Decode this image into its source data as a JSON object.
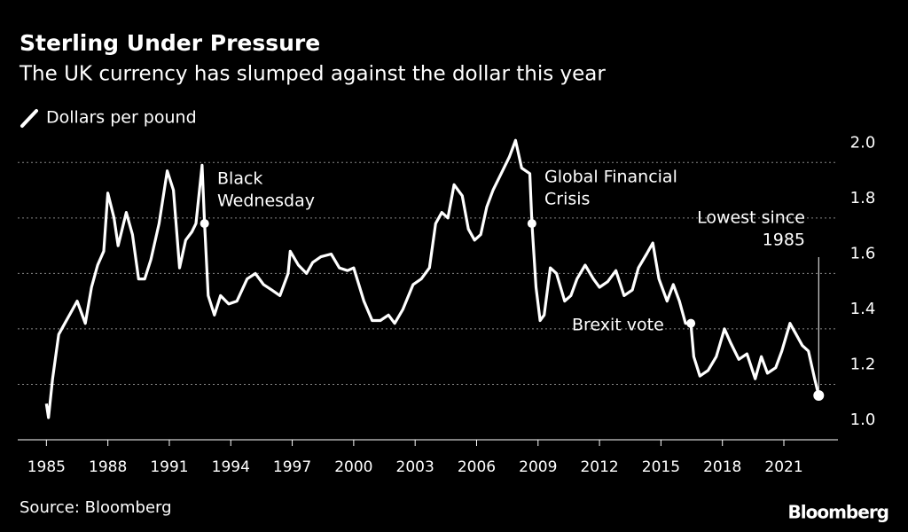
{
  "chart_data": {
    "type": "line",
    "title": "Sterling Under Pressure",
    "subtitle": "The UK currency has slumped against the dollar this year",
    "source": "Source: Bloomberg",
    "brand": "Bloomberg",
    "x": [
      1985.0,
      1985.1,
      1985.3,
      1985.6,
      1985.9,
      1986.2,
      1986.5,
      1986.9,
      1987.2,
      1987.5,
      1987.8,
      1988.0,
      1988.3,
      1988.5,
      1988.9,
      1989.2,
      1989.5,
      1989.8,
      1990.1,
      1990.5,
      1990.9,
      1991.2,
      1991.5,
      1991.8,
      1992.1,
      1992.3,
      1992.6,
      1992.72,
      1992.9,
      1993.2,
      1993.5,
      1993.9,
      1994.3,
      1994.8,
      1995.2,
      1995.6,
      1996.0,
      1996.4,
      1996.8,
      1996.9,
      1997.3,
      1997.7,
      1998.0,
      1998.4,
      1998.9,
      1999.3,
      1999.7,
      2000.0,
      2000.5,
      2000.9,
      2001.3,
      2001.7,
      2002.0,
      2002.4,
      2002.9,
      2003.3,
      2003.7,
      2004.0,
      2004.3,
      2004.6,
      2004.9,
      2005.3,
      2005.6,
      2005.9,
      2006.2,
      2006.5,
      2006.8,
      2007.2,
      2007.6,
      2007.9,
      2008.2,
      2008.6,
      2008.7,
      2008.9,
      2009.1,
      2009.3,
      2009.6,
      2009.9,
      2010.3,
      2010.6,
      2010.9,
      2011.3,
      2011.7,
      2012.0,
      2012.4,
      2012.8,
      2013.2,
      2013.6,
      2013.9,
      2014.3,
      2014.6,
      2014.9,
      2015.3,
      2015.6,
      2015.9,
      2016.2,
      2016.46,
      2016.6,
      2016.9,
      2017.3,
      2017.7,
      2018.1,
      2018.4,
      2018.8,
      2019.2,
      2019.6,
      2019.9,
      2020.2,
      2020.6,
      2020.9,
      2021.3,
      2021.6,
      2021.9,
      2022.2,
      2022.5,
      2022.7
    ],
    "series": [
      {
        "name": "Dollars per pound",
        "color": "#ffffff",
        "values": [
          1.13,
          1.08,
          1.22,
          1.38,
          1.42,
          1.46,
          1.5,
          1.42,
          1.55,
          1.63,
          1.68,
          1.89,
          1.8,
          1.7,
          1.82,
          1.74,
          1.58,
          1.58,
          1.65,
          1.78,
          1.97,
          1.9,
          1.62,
          1.72,
          1.75,
          1.78,
          1.99,
          1.78,
          1.52,
          1.45,
          1.52,
          1.49,
          1.5,
          1.58,
          1.6,
          1.56,
          1.54,
          1.52,
          1.6,
          1.68,
          1.63,
          1.6,
          1.64,
          1.66,
          1.67,
          1.62,
          1.61,
          1.62,
          1.5,
          1.43,
          1.43,
          1.45,
          1.42,
          1.47,
          1.56,
          1.58,
          1.62,
          1.78,
          1.82,
          1.8,
          1.92,
          1.88,
          1.76,
          1.72,
          1.74,
          1.84,
          1.9,
          1.96,
          2.02,
          2.08,
          1.98,
          1.96,
          1.78,
          1.55,
          1.43,
          1.45,
          1.62,
          1.6,
          1.5,
          1.52,
          1.58,
          1.63,
          1.58,
          1.55,
          1.57,
          1.61,
          1.52,
          1.54,
          1.62,
          1.67,
          1.71,
          1.58,
          1.5,
          1.56,
          1.5,
          1.42,
          1.42,
          1.3,
          1.23,
          1.25,
          1.3,
          1.4,
          1.35,
          1.29,
          1.31,
          1.22,
          1.3,
          1.24,
          1.26,
          1.32,
          1.42,
          1.38,
          1.34,
          1.32,
          1.22,
          1.16
        ]
      }
    ],
    "xlim": [
      1983.6,
      2023.64
    ],
    "ylim": [
      1.0,
      2.1
    ],
    "xticks": [
      1985,
      1988,
      1991,
      1994,
      1997,
      2000,
      2003,
      2006,
      2009,
      2012,
      2015,
      2018,
      2021
    ],
    "yticks": [
      {
        "value": 1.0,
        "label": "1.0"
      },
      1.2,
      1.4,
      1.6,
      1.8,
      {
        "value": 2.0,
        "label": "2.0"
      }
    ],
    "grid": true,
    "annotations": [
      {
        "lines": [
          "Black",
          "Wednesday"
        ],
        "x": 1992.72
      },
      {
        "lines": [
          "Global Financial",
          "Crisis"
        ],
        "x": 2008.7
      },
      {
        "lines": [
          "Brexit vote"
        ],
        "x": 2016.46
      },
      {
        "lines": [
          "Lowest since",
          "1985"
        ],
        "x": 2022.7
      }
    ]
  }
}
